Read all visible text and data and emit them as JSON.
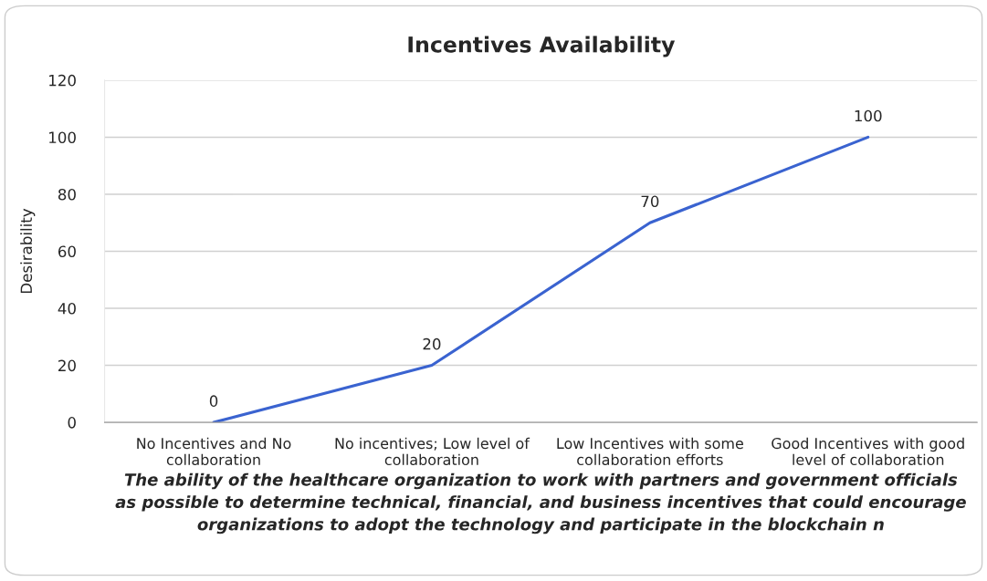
{
  "chart_data": {
    "type": "line",
    "title": "Incentives Availability",
    "ylabel": "Desirability",
    "xlabel": "The ability of the healthcare organization to work with partners and government officials\nas possible to determine technical, financial, and business incentives that could encourage\norganizations to adopt the technology and participate in the blockchain n",
    "categories": [
      "No Incentives and No\ncollaboration",
      "No incentives; Low level of\ncollaboration",
      "Low Incentives with some\ncollaboration efforts",
      "Good Incentives with good\nlevel of collaboration"
    ],
    "series": [
      {
        "color": "#3a63d0",
        "values": [
          0,
          20,
          70,
          100
        ]
      }
    ],
    "ylim": [
      0,
      120
    ],
    "yticks": [
      0,
      20,
      40,
      60,
      80,
      100,
      120
    ],
    "grid": "y",
    "data_labels": true,
    "marker": "none",
    "line_style": "solid"
  }
}
